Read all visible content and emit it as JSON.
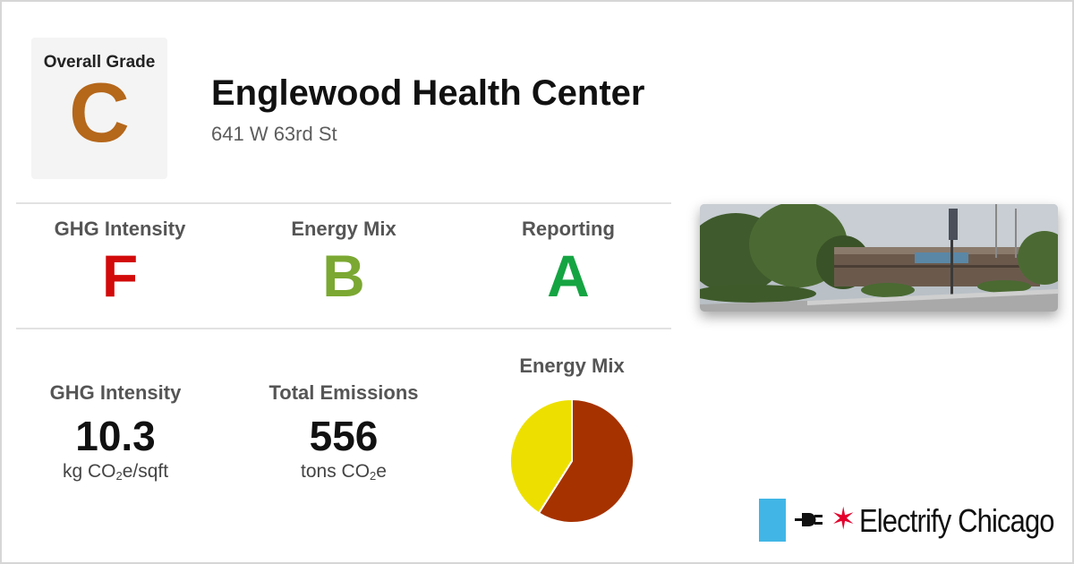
{
  "building": {
    "name": "Englewood Health Center",
    "address": "641 W 63rd St"
  },
  "overall": {
    "label": "Overall Grade",
    "grade": "C",
    "color": "#b5671a"
  },
  "grades": [
    {
      "label": "GHG Intensity",
      "grade": "F",
      "color": "#d20a0a"
    },
    {
      "label": "Energy Mix",
      "grade": "B",
      "color": "#7ba832"
    },
    {
      "label": "Reporting",
      "grade": "A",
      "color": "#15a442"
    }
  ],
  "stats": {
    "ghg_intensity": {
      "label": "GHG Intensity",
      "value": "10.3",
      "unit_pre": "kg CO",
      "unit_sub": "2",
      "unit_post": "e/sqft"
    },
    "total_emissions": {
      "label": "Total Emissions",
      "value": "556",
      "unit_pre": "tons CO",
      "unit_sub": "2",
      "unit_post": "e"
    }
  },
  "chart_data": {
    "type": "pie",
    "title": "Energy Mix",
    "slices": [
      {
        "value": 0.59,
        "color": "#a63200"
      },
      {
        "value": 0.41,
        "color": "#ede000"
      }
    ]
  },
  "photo": {
    "icon": "building-photo"
  },
  "logo": {
    "text": "Electrify Chicago",
    "flag_color": "#41b6e6",
    "star_color": "#e4002b",
    "star_glyph": "✶",
    "plug_icon": "plug-icon"
  }
}
